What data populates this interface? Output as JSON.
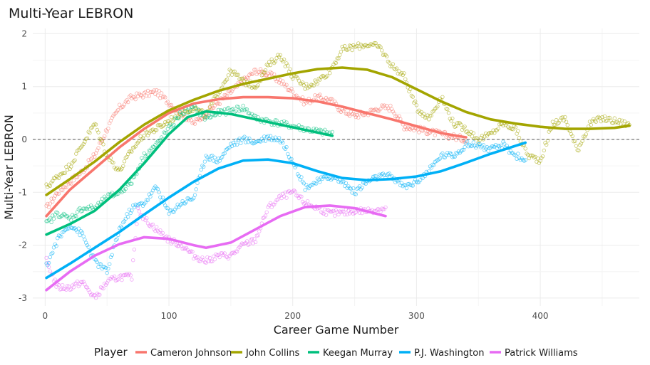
{
  "chart_data": {
    "type": "scatter",
    "title": "Multi-Year LEBRON",
    "xlabel": "Career Game Number",
    "ylabel": "Multi-Year LEBRON",
    "xlim": [
      -10,
      480
    ],
    "ylim": [
      -3.15,
      2.1
    ],
    "x_ticks": [
      0,
      100,
      200,
      300,
      400
    ],
    "y_ticks": [
      -3,
      -2,
      -1,
      0,
      1,
      2
    ],
    "reference_line": {
      "y": 0,
      "style": "dashed"
    },
    "grid": true,
    "legend": {
      "title": "Player",
      "position": "bottom"
    },
    "series": [
      {
        "name": "Cameron Johnson",
        "color": "#F8766D",
        "x_range": [
          1,
          340
        ],
        "smooth": [
          [
            1,
            -1.45
          ],
          [
            20,
            -0.95
          ],
          [
            40,
            -0.55
          ],
          [
            60,
            -0.15
          ],
          [
            80,
            0.2
          ],
          [
            100,
            0.5
          ],
          [
            120,
            0.68
          ],
          [
            140,
            0.76
          ],
          [
            160,
            0.8
          ],
          [
            180,
            0.8
          ],
          [
            200,
            0.78
          ],
          [
            220,
            0.72
          ],
          [
            240,
            0.62
          ],
          [
            260,
            0.5
          ],
          [
            280,
            0.38
          ],
          [
            300,
            0.25
          ],
          [
            320,
            0.12
          ],
          [
            340,
            0.04
          ]
        ],
        "points_cloud": [
          [
            1,
            -1.3
          ],
          [
            10,
            -1.0
          ],
          [
            20,
            -0.8
          ],
          [
            30,
            -0.6
          ],
          [
            40,
            -0.3
          ],
          [
            50,
            0.2
          ],
          [
            60,
            0.6
          ],
          [
            70,
            0.8
          ],
          [
            80,
            0.85
          ],
          [
            90,
            0.9
          ],
          [
            100,
            0.7
          ],
          [
            110,
            0.5
          ],
          [
            120,
            0.3
          ],
          [
            130,
            0.5
          ],
          [
            140,
            0.7
          ],
          [
            150,
            0.9
          ],
          [
            160,
            1.1
          ],
          [
            170,
            1.3
          ],
          [
            180,
            1.25
          ],
          [
            190,
            1.1
          ],
          [
            200,
            0.9
          ],
          [
            210,
            0.7
          ],
          [
            220,
            0.8
          ],
          [
            230,
            0.75
          ],
          [
            240,
            0.55
          ],
          [
            250,
            0.45
          ],
          [
            260,
            0.5
          ],
          [
            270,
            0.6
          ],
          [
            280,
            0.6
          ],
          [
            290,
            0.25
          ],
          [
            300,
            0.2
          ],
          [
            310,
            0.15
          ],
          [
            320,
            0.1
          ],
          [
            330,
            0.05
          ],
          [
            340,
            0.0
          ]
        ]
      },
      {
        "name": "John Collins",
        "color": "#A3A500",
        "x_range": [
          1,
          472
        ],
        "smooth": [
          [
            1,
            -1.05
          ],
          [
            20,
            -0.75
          ],
          [
            40,
            -0.42
          ],
          [
            60,
            -0.05
          ],
          [
            80,
            0.28
          ],
          [
            100,
            0.55
          ],
          [
            120,
            0.75
          ],
          [
            140,
            0.92
          ],
          [
            160,
            1.05
          ],
          [
            180,
            1.15
          ],
          [
            200,
            1.25
          ],
          [
            220,
            1.33
          ],
          [
            240,
            1.36
          ],
          [
            260,
            1.32
          ],
          [
            280,
            1.18
          ],
          [
            300,
            0.95
          ],
          [
            320,
            0.72
          ],
          [
            340,
            0.52
          ],
          [
            360,
            0.38
          ],
          [
            380,
            0.3
          ],
          [
            400,
            0.24
          ],
          [
            420,
            0.2
          ],
          [
            440,
            0.2
          ],
          [
            460,
            0.22
          ],
          [
            472,
            0.26
          ]
        ],
        "points_cloud": [
          [
            1,
            -0.9
          ],
          [
            10,
            -0.7
          ],
          [
            20,
            -0.5
          ],
          [
            30,
            -0.1
          ],
          [
            40,
            0.3
          ],
          [
            50,
            -0.3
          ],
          [
            60,
            -0.6
          ],
          [
            70,
            -0.2
          ],
          [
            80,
            0.1
          ],
          [
            90,
            0.2
          ],
          [
            100,
            0.35
          ],
          [
            110,
            0.5
          ],
          [
            120,
            0.6
          ],
          [
            130,
            0.45
          ],
          [
            140,
            0.9
          ],
          [
            150,
            1.3
          ],
          [
            160,
            1.1
          ],
          [
            170,
            1.0
          ],
          [
            180,
            1.4
          ],
          [
            190,
            1.6
          ],
          [
            200,
            1.2
          ],
          [
            210,
            1.0
          ],
          [
            220,
            1.1
          ],
          [
            230,
            1.3
          ],
          [
            240,
            1.7
          ],
          [
            250,
            1.75
          ],
          [
            260,
            1.8
          ],
          [
            270,
            1.75
          ],
          [
            280,
            1.4
          ],
          [
            290,
            1.2
          ],
          [
            300,
            0.6
          ],
          [
            310,
            0.4
          ],
          [
            320,
            0.8
          ],
          [
            330,
            0.3
          ],
          [
            340,
            0.2
          ],
          [
            350,
            0.0
          ],
          [
            360,
            0.1
          ],
          [
            370,
            0.3
          ],
          [
            380,
            0.2
          ],
          [
            390,
            -0.3
          ],
          [
            400,
            -0.4
          ],
          [
            410,
            0.3
          ],
          [
            420,
            0.4
          ],
          [
            430,
            -0.2
          ],
          [
            440,
            0.3
          ],
          [
            450,
            0.4
          ],
          [
            460,
            0.35
          ],
          [
            472,
            0.28
          ]
        ]
      },
      {
        "name": "Keegan Murray",
        "color": "#00BF7D",
        "x_range": [
          1,
          232
        ],
        "smooth": [
          [
            1,
            -1.8
          ],
          [
            20,
            -1.6
          ],
          [
            40,
            -1.35
          ],
          [
            60,
            -0.95
          ],
          [
            80,
            -0.45
          ],
          [
            100,
            0.1
          ],
          [
            115,
            0.42
          ],
          [
            130,
            0.53
          ],
          [
            150,
            0.48
          ],
          [
            170,
            0.38
          ],
          [
            190,
            0.28
          ],
          [
            210,
            0.18
          ],
          [
            232,
            0.07
          ]
        ],
        "points_cloud": [
          [
            1,
            -1.6
          ],
          [
            10,
            -1.4
          ],
          [
            20,
            -1.5
          ],
          [
            30,
            -1.3
          ],
          [
            40,
            -1.3
          ],
          [
            50,
            -1.1
          ],
          [
            60,
            -1.0
          ],
          [
            70,
            -0.8
          ],
          [
            80,
            -0.3
          ],
          [
            90,
            -0.1
          ],
          [
            100,
            0.2
          ],
          [
            110,
            0.5
          ],
          [
            120,
            0.6
          ],
          [
            130,
            0.4
          ],
          [
            140,
            0.5
          ],
          [
            150,
            0.55
          ],
          [
            160,
            0.6
          ],
          [
            170,
            0.4
          ],
          [
            180,
            0.35
          ],
          [
            190,
            0.3
          ],
          [
            200,
            0.25
          ],
          [
            210,
            0.2
          ],
          [
            220,
            0.15
          ],
          [
            232,
            0.1
          ]
        ]
      },
      {
        "name": "P.J. Washington",
        "color": "#00B0F6",
        "x_range": [
          1,
          388
        ],
        "smooth": [
          [
            1,
            -2.62
          ],
          [
            20,
            -2.35
          ],
          [
            40,
            -2.05
          ],
          [
            60,
            -1.75
          ],
          [
            80,
            -1.42
          ],
          [
            100,
            -1.1
          ],
          [
            120,
            -0.8
          ],
          [
            140,
            -0.55
          ],
          [
            160,
            -0.4
          ],
          [
            180,
            -0.38
          ],
          [
            200,
            -0.45
          ],
          [
            220,
            -0.6
          ],
          [
            240,
            -0.73
          ],
          [
            260,
            -0.77
          ],
          [
            280,
            -0.75
          ],
          [
            300,
            -0.7
          ],
          [
            320,
            -0.6
          ],
          [
            340,
            -0.44
          ],
          [
            360,
            -0.27
          ],
          [
            388,
            -0.06
          ]
        ],
        "points_cloud": [
          [
            1,
            -2.4
          ],
          [
            10,
            -1.9
          ],
          [
            20,
            -1.6
          ],
          [
            30,
            -1.8
          ],
          [
            40,
            -2.3
          ],
          [
            50,
            -2.5
          ],
          [
            60,
            -1.7
          ],
          [
            70,
            -1.3
          ],
          [
            80,
            -1.2
          ],
          [
            90,
            -0.9
          ],
          [
            100,
            -1.4
          ],
          [
            110,
            -1.2
          ],
          [
            120,
            -1.1
          ],
          [
            130,
            -0.3
          ],
          [
            140,
            -0.4
          ],
          [
            150,
            -0.1
          ],
          [
            160,
            0.0
          ],
          [
            170,
            -0.05
          ],
          [
            180,
            0.05
          ],
          [
            190,
            0.0
          ],
          [
            200,
            -0.4
          ],
          [
            210,
            -0.9
          ],
          [
            220,
            -0.8
          ],
          [
            230,
            -0.7
          ],
          [
            240,
            -0.8
          ],
          [
            250,
            -1.0
          ],
          [
            260,
            -0.8
          ],
          [
            270,
            -0.7
          ],
          [
            280,
            -0.7
          ],
          [
            290,
            -0.9
          ],
          [
            300,
            -0.8
          ],
          [
            310,
            -0.6
          ],
          [
            320,
            -0.3
          ],
          [
            330,
            -0.3
          ],
          [
            340,
            -0.1
          ],
          [
            350,
            -0.1
          ],
          [
            360,
            -0.2
          ],
          [
            370,
            -0.1
          ],
          [
            380,
            -0.3
          ],
          [
            388,
            -0.4
          ]
        ]
      },
      {
        "name": "Patrick Williams",
        "color": "#E76BF3",
        "x_range": [
          1,
          275
        ],
        "smooth": [
          [
            1,
            -2.85
          ],
          [
            20,
            -2.5
          ],
          [
            40,
            -2.2
          ],
          [
            60,
            -1.98
          ],
          [
            80,
            -1.85
          ],
          [
            100,
            -1.88
          ],
          [
            120,
            -2.0
          ],
          [
            130,
            -2.05
          ],
          [
            150,
            -1.95
          ],
          [
            170,
            -1.7
          ],
          [
            190,
            -1.45
          ],
          [
            210,
            -1.28
          ],
          [
            230,
            -1.25
          ],
          [
            250,
            -1.3
          ],
          [
            275,
            -1.45
          ]
        ],
        "points_cloud": [
          [
            1,
            -2.3
          ],
          [
            10,
            -2.8
          ],
          [
            20,
            -2.8
          ],
          [
            30,
            -2.7
          ],
          [
            40,
            -3.0
          ],
          [
            50,
            -2.7
          ],
          [
            60,
            -2.6
          ],
          [
            70,
            -2.6
          ],
          [
            75,
            -1.3
          ],
          [
            80,
            -1.5
          ],
          [
            90,
            -1.7
          ],
          [
            100,
            -1.9
          ],
          [
            110,
            -2.0
          ],
          [
            120,
            -2.2
          ],
          [
            130,
            -2.3
          ],
          [
            140,
            -2.2
          ],
          [
            150,
            -2.2
          ],
          [
            160,
            -2.0
          ],
          [
            170,
            -1.9
          ],
          [
            180,
            -1.3
          ],
          [
            190,
            -1.1
          ],
          [
            200,
            -1.0
          ],
          [
            210,
            -1.2
          ],
          [
            220,
            -1.3
          ],
          [
            230,
            -1.4
          ],
          [
            240,
            -1.4
          ],
          [
            250,
            -1.35
          ],
          [
            260,
            -1.35
          ],
          [
            275,
            -1.3
          ]
        ]
      }
    ]
  }
}
